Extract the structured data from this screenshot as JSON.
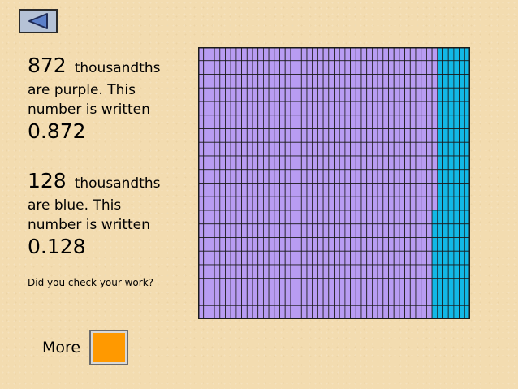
{
  "navigation": {
    "back_icon": "left-triangle-icon"
  },
  "purple_section": {
    "count": "872",
    "unit_word": "thousandths",
    "line1": "are purple. This",
    "line2": "number is written",
    "decimal": "0.872"
  },
  "blue_section": {
    "count": "128",
    "unit_word": "thousandths",
    "line1": "are blue.  This",
    "line2": "number is written",
    "decimal": "0.128"
  },
  "check_prompt": "Did you check your work?",
  "grid": {
    "total_cells": 1000,
    "purple_cells": 872,
    "blue_cells": 128,
    "purple_color": "#b89cf2",
    "blue_color": "#12b8e6",
    "line_color": "#1a1a1a"
  },
  "more": {
    "label": "More",
    "button_color": "#ff9900"
  }
}
